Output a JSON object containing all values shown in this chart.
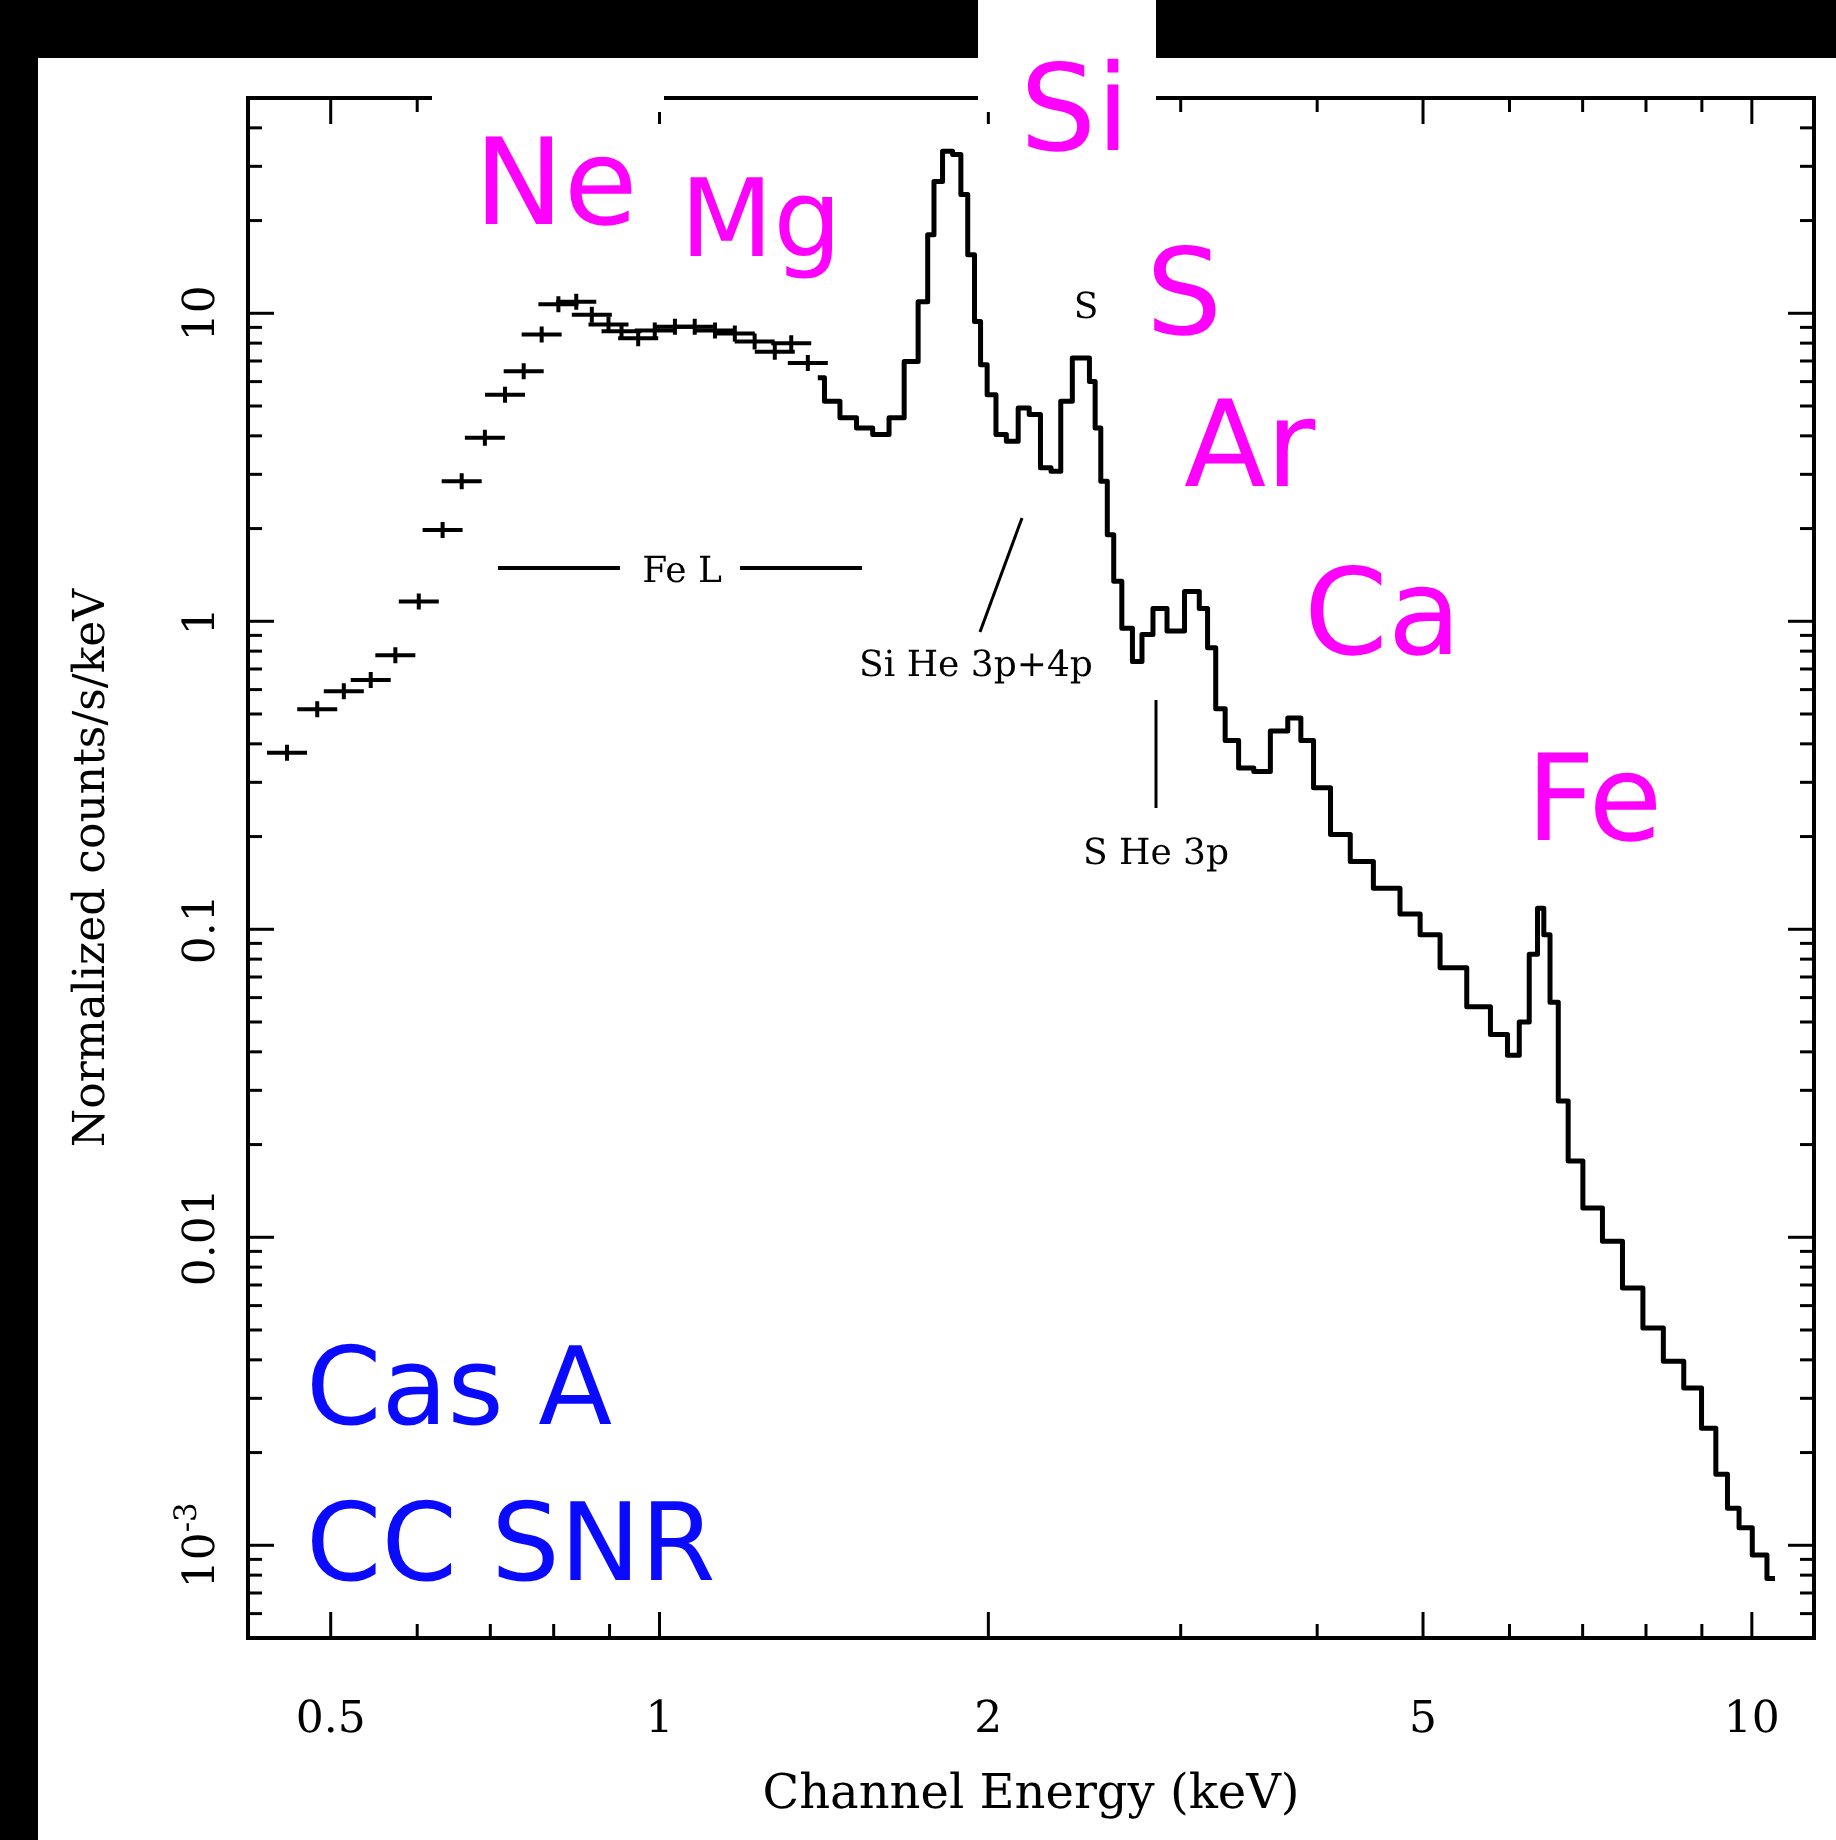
{
  "chart_data": {
    "type": "step",
    "xlabel": "Channel Energy (keV)",
    "ylabel": "Normalized counts/s/keV",
    "log": "xy",
    "xlim": [
      0.42,
      11.4
    ],
    "ylim": [
      0.0005,
      50
    ],
    "xticks": [
      0.5,
      {
        "value": 0.6,
        "label": null
      },
      {
        "value": 0.7,
        "label": null
      },
      {
        "value": 0.8,
        "label": null
      },
      {
        "value": 0.9,
        "label": null
      },
      1,
      2,
      {
        "value": 3,
        "label": null
      },
      {
        "value": 4,
        "label": null
      },
      5,
      {
        "value": 6,
        "label": null
      },
      {
        "value": 7,
        "label": null
      },
      {
        "value": 8,
        "label": null
      },
      {
        "value": 9,
        "label": null
      },
      10
    ],
    "yticks": [
      {
        "value": 0.0006,
        "label": null
      },
      {
        "value": 0.0007,
        "label": null
      },
      {
        "value": 0.0008,
        "label": null
      },
      {
        "value": 0.0009,
        "label": null
      },
      {
        "value": 0.001,
        "label": "10$^{-3}$"
      },
      {
        "value": 0.002,
        "label": null
      },
      {
        "value": 0.003,
        "label": null
      },
      {
        "value": 0.004,
        "label": null
      },
      {
        "value": 0.005,
        "label": null
      },
      {
        "value": 0.006,
        "label": null
      },
      {
        "value": 0.007,
        "label": null
      },
      {
        "value": 0.008,
        "label": null
      },
      {
        "value": 0.009,
        "label": null
      },
      0.01,
      {
        "value": 0.02,
        "label": null
      },
      {
        "value": 0.03,
        "label": null
      },
      {
        "value": 0.04,
        "label": null
      },
      {
        "value": 0.05,
        "label": null
      },
      {
        "value": 0.06,
        "label": null
      },
      {
        "value": 0.07,
        "label": null
      },
      {
        "value": 0.08,
        "label": null
      },
      {
        "value": 0.09,
        "label": null
      },
      0.1,
      {
        "value": 0.2,
        "label": null
      },
      {
        "value": 0.3,
        "label": null
      },
      {
        "value": 0.4,
        "label": null
      },
      {
        "value": 0.5,
        "label": null
      },
      {
        "value": 0.6,
        "label": null
      },
      {
        "value": 0.7,
        "label": null
      },
      {
        "value": 0.8,
        "label": null
      },
      {
        "value": 0.9,
        "label": null
      },
      1,
      {
        "value": 2,
        "label": null
      },
      {
        "value": 3,
        "label": null
      },
      {
        "value": 4,
        "label": null
      },
      {
        "value": 5,
        "label": null
      },
      {
        "value": 6,
        "label": null
      },
      {
        "value": 7,
        "label": null
      },
      {
        "value": 8,
        "label": null
      },
      {
        "value": 9,
        "label": null
      },
      10,
      {
        "value": 20,
        "label": null
      },
      {
        "value": 30,
        "label": null
      },
      {
        "value": 40,
        "label": null
      }
    ],
    "series": [
      {
        "type": "scatter",
        "marker": "cross",
        "color": "#000000",
        "x": [
          0.456,
          0.486,
          0.514,
          0.544,
          0.573,
          0.602,
          0.633,
          0.659,
          0.692,
          0.722,
          0.751,
          0.78,
          0.808,
          0.839,
          0.867,
          0.898,
          0.923,
          0.956,
          0.99,
          1.033,
          1.077,
          1.124,
          1.172,
          1.222,
          1.275,
          1.32,
          1.367
        ],
        "values": [
          0.374,
          0.518,
          0.593,
          0.645,
          0.776,
          1.16,
          1.98,
          2.85,
          3.94,
          5.44,
          6.48,
          8.53,
          10.7,
          10.9,
          9.9,
          9.2,
          8.74,
          8.3,
          8.8,
          9.05,
          9.05,
          8.8,
          8.6,
          8.1,
          7.5,
          8.0,
          6.9
        ]
      },
      {
        "color": "#000000",
        "x": [
          1.396,
          1.436,
          1.49,
          1.54,
          1.595,
          1.65,
          1.7,
          1.75,
          1.77,
          1.797,
          1.835,
          1.875,
          1.9,
          1.93,
          1.955,
          1.98,
          2.01,
          2.055,
          2.1,
          2.16,
          2.2,
          2.265,
          2.3,
          2.36,
          2.415,
          2.46,
          2.49,
          2.52,
          2.55,
          2.59,
          2.62,
          2.68,
          2.74,
          2.79,
          2.87,
          2.96,
          3.09,
          3.15,
          3.2,
          3.26,
          3.33,
          3.45,
          3.55,
          3.7,
          3.82,
          3.91,
          4.03,
          4.2,
          4.38,
          4.63,
          4.9,
          5.04,
          5.33,
          5.64,
          5.89,
          6.06,
          6.19,
          6.32,
          6.41,
          6.49,
          6.58,
          6.72,
          6.86,
          7.15,
          7.45,
          7.78,
          8.12,
          8.48,
          8.85,
          9.14,
          9.4,
          9.6,
          9.87,
          10.15,
          10.5
        ],
        "values": [
          6.17,
          5.18,
          4.58,
          4.24,
          4.04,
          4.58,
          6.98,
          10.9,
          18,
          26.8,
          33.6,
          32.8,
          24.3,
          15.5,
          9.4,
          6.8,
          5.44,
          4.04,
          3.84,
          4.93,
          4.69,
          3.15,
          3.07,
          5.18,
          7.16,
          7.16,
          6.01,
          4.24,
          2.85,
          1.91,
          1.35,
          0.95,
          0.74,
          0.906,
          1.1,
          0.93,
          1.25,
          1.1,
          0.82,
          0.52,
          0.41,
          0.334,
          0.325,
          0.44,
          0.485,
          0.41,
          0.288,
          0.203,
          0.166,
          0.136,
          0.112,
          0.096,
          0.075,
          0.056,
          0.0455,
          0.039,
          0.05,
          0.083,
          0.117,
          0.096,
          0.058,
          0.0277,
          0.0177,
          0.01245,
          0.0097,
          0.00685,
          0.00508,
          0.00396,
          0.00324,
          0.0024,
          0.0017,
          0.00132,
          0.00114,
          0.00093,
          0.00078
        ]
      }
    ],
    "annotations": [
      "Ne",
      "Mg",
      "Si",
      "S",
      "S",
      "Ar",
      "Ca",
      "Fe",
      "Fe L",
      "Si He 3p+4p",
      "S He 3p",
      "Cas A\nCC SNR"
    ]
  }
}
